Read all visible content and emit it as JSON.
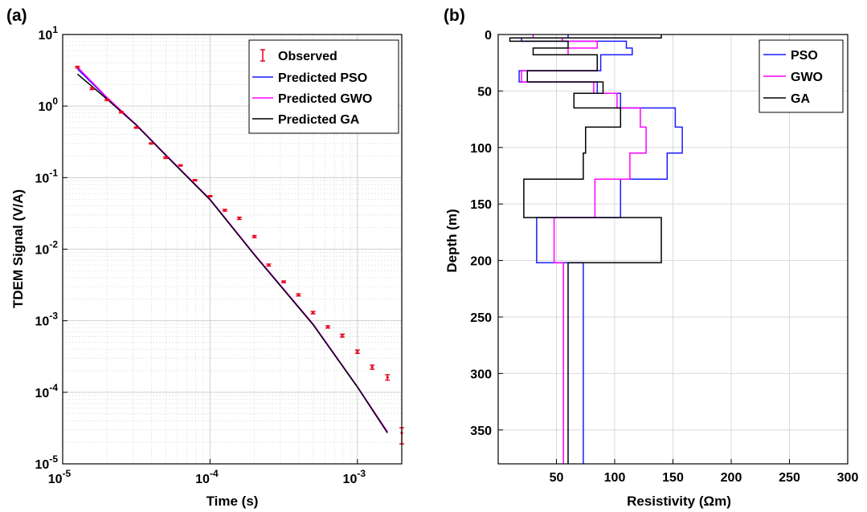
{
  "chart_data": [
    {
      "panel": "(a)",
      "type": "line",
      "xlabel": "Time (s)",
      "ylabel": "TDEM Signal (V/A)",
      "xscale": "log",
      "yscale": "log",
      "xlim": [
        1e-05,
        0.002
      ],
      "ylim": [
        1e-05,
        10
      ],
      "grid": "on (major and minor)",
      "legend_position": "top-right",
      "x_tick_labels": [
        {
          "base": "10",
          "exp": "-5"
        },
        {
          "base": "10",
          "exp": "-4"
        },
        {
          "base": "10",
          "exp": "-3"
        }
      ],
      "y_tick_labels": [
        {
          "base": "10",
          "exp": "-5"
        },
        {
          "base": "10",
          "exp": "-4"
        },
        {
          "base": "10",
          "exp": "-3"
        },
        {
          "base": "10",
          "exp": "-2"
        },
        {
          "base": "10",
          "exp": "-1"
        },
        {
          "base": "10",
          "exp": "0"
        },
        {
          "base": "10",
          "exp": "1"
        }
      ],
      "observed": {
        "name": "Observed",
        "color": "#e8001a",
        "x": [
          1.26e-05,
          1.58e-05,
          2e-05,
          2.5e-05,
          3.16e-05,
          3.98e-05,
          5e-05,
          6.3e-05,
          7.9e-05,
          0.0001,
          0.000126,
          0.000158,
          0.0002,
          0.00025,
          0.000316,
          0.000398,
          0.0005,
          0.00063,
          0.00079,
          0.001,
          0.00126,
          0.0016,
          0.002
        ],
        "y": [
          3.5,
          1.75,
          1.22,
          0.82,
          0.5,
          0.3,
          0.19,
          0.148,
          0.092,
          0.055,
          0.035,
          0.027,
          0.015,
          0.006,
          0.0035,
          0.0023,
          0.0013,
          0.00082,
          0.00062,
          0.00037,
          0.000225,
          0.000162,
          2.7e-05
        ],
        "err_low": [
          3.4,
          1.7,
          1.19,
          0.8,
          0.49,
          0.295,
          0.185,
          0.145,
          0.09,
          0.054,
          0.034,
          0.026,
          0.0145,
          0.0058,
          0.0034,
          0.00222,
          0.00125,
          0.00079,
          0.00059,
          0.00035,
          0.00021,
          0.000148,
          1.9e-05
        ],
        "err_high": [
          3.6,
          1.8,
          1.25,
          0.84,
          0.51,
          0.305,
          0.195,
          0.151,
          0.094,
          0.056,
          0.036,
          0.028,
          0.0155,
          0.0062,
          0.0036,
          0.00238,
          0.00135,
          0.00085,
          0.00065,
          0.00039,
          0.00024,
          0.000176,
          3.2e-05
        ]
      },
      "series": [
        {
          "name": "Predicted PSO",
          "color": "#1a1aff",
          "x": [
            1.26e-05,
            2e-05,
            3.16e-05,
            5e-05,
            0.0001,
            0.0002,
            0.0005,
            0.001,
            0.0016
          ],
          "y": [
            3.3,
            1.3,
            0.55,
            0.21,
            0.05,
            0.0085,
            0.0009,
            0.00012,
            2.8e-05
          ]
        },
        {
          "name": "Predicted GWO",
          "color": "#ff00ff",
          "x": [
            1.26e-05,
            2e-05,
            3.16e-05,
            5e-05,
            0.0001,
            0.0002,
            0.0005,
            0.001,
            0.0016
          ],
          "y": [
            3.5,
            1.32,
            0.55,
            0.21,
            0.05,
            0.0085,
            0.0009,
            0.00012,
            2.8e-05
          ]
        },
        {
          "name": "Predicted GA",
          "color": "#000000",
          "x": [
            1.26e-05,
            2e-05,
            3.16e-05,
            5e-05,
            0.0001,
            0.0002,
            0.0005,
            0.001,
            0.0016
          ],
          "y": [
            2.8,
            1.25,
            0.54,
            0.205,
            0.049,
            0.0083,
            0.00088,
            0.000118,
            2.7e-05
          ]
        }
      ]
    },
    {
      "panel": "(b)",
      "type": "line",
      "xlabel": "Resistivity (Ωm)",
      "ylabel": "Depth (m)",
      "xlim": [
        0,
        300
      ],
      "ylim": [
        380,
        0
      ],
      "y_reversed": true,
      "grid": "on",
      "legend_position": "top-right",
      "x_ticks": [
        50,
        100,
        150,
        200,
        250,
        300
      ],
      "y_ticks": [
        0,
        50,
        100,
        150,
        200,
        250,
        300,
        350
      ],
      "series": [
        {
          "name": "PSO",
          "color": "#1a1aff",
          "resistivity": [
            60,
            20,
            110,
            115,
            88,
            18,
            85,
            105,
            152,
            158,
            145,
            105,
            33,
            73,
            73
          ],
          "depth_top": [
            0,
            3,
            6,
            12,
            18,
            32,
            42,
            52,
            65,
            82,
            105,
            128,
            162,
            202,
            230
          ],
          "depth_bottom": [
            3,
            6,
            12,
            18,
            32,
            42,
            52,
            65,
            82,
            105,
            128,
            162,
            202,
            230,
            380
          ]
        },
        {
          "name": "GWO",
          "color": "#ff00ff",
          "resistivity": [
            30,
            55,
            85,
            60,
            85,
            20,
            82,
            102,
            122,
            127,
            113,
            83,
            48,
            56,
            56
          ],
          "depth_top": [
            0,
            3,
            6,
            12,
            18,
            32,
            42,
            52,
            65,
            82,
            105,
            128,
            162,
            202,
            230
          ],
          "depth_bottom": [
            3,
            6,
            12,
            18,
            32,
            42,
            52,
            65,
            82,
            105,
            128,
            162,
            202,
            230,
            380
          ]
        },
        {
          "name": "GA",
          "color": "#000000",
          "resistivity": [
            140,
            10,
            60,
            30,
            85,
            25,
            90,
            65,
            105,
            75,
            73,
            22,
            140,
            60,
            60
          ],
          "depth_top": [
            0,
            3,
            6,
            12,
            18,
            32,
            42,
            52,
            65,
            82,
            105,
            128,
            162,
            202,
            230
          ],
          "depth_bottom": [
            3,
            6,
            12,
            18,
            32,
            42,
            52,
            65,
            82,
            105,
            128,
            162,
            202,
            230,
            380
          ]
        }
      ]
    }
  ]
}
